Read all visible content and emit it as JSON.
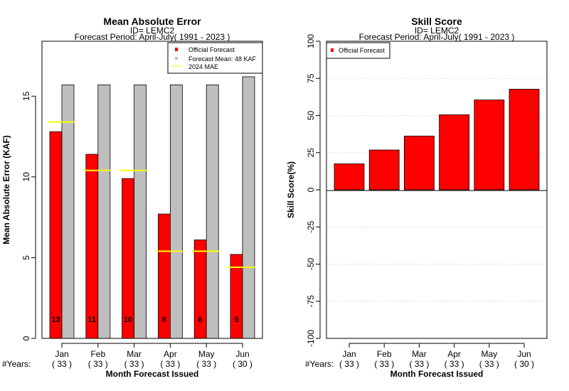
{
  "chart_data": [
    {
      "type": "bar",
      "title": "Mean Absolute Error",
      "subtitle_id": "ID= LEMC2",
      "subtitle_period": "Forecast Period: April-July( 1991 - 2023 )",
      "ylabel": "Mean Absolute Error (KAF)",
      "xlabel": "Month Forecast Issued",
      "ylim": [
        0,
        18.4
      ],
      "yticks": [
        "0",
        "5",
        "10",
        "15"
      ],
      "ytick_values": [
        0,
        5,
        10,
        15
      ],
      "categories": [
        "Jan",
        "Feb",
        "Mar",
        "Apr",
        "May",
        "Jun"
      ],
      "years_label": "#Years:",
      "years": [
        "( 33 )",
        "( 33 )",
        "( 33 )",
        "( 33 )",
        "( 33 )",
        "( 30 )"
      ],
      "series": [
        {
          "name": "Official Forecast",
          "color": "#ff0000",
          "values": [
            12.8,
            11.4,
            9.9,
            7.7,
            6.1,
            5.2
          ],
          "labels": [
            "13",
            "11",
            "10",
            "8",
            "6",
            "5"
          ]
        },
        {
          "name": "Forecast Mean: 48 KAF",
          "color": "#bebebe",
          "values": [
            15.7,
            15.7,
            15.7,
            15.7,
            15.7,
            16.2
          ]
        },
        {
          "name": " 2024  MAE",
          "color": "#ffff00",
          "values": [
            13.4,
            10.4,
            10.4,
            5.4,
            5.4,
            4.4
          ]
        }
      ],
      "legend_position": "top-right",
      "grid": false
    },
    {
      "type": "bar",
      "title": "Skill Score",
      "subtitle_id": "ID= LEMC2",
      "subtitle_period": "Forecast Period: April-July( 1991 - 2023 )",
      "ylabel": "Skill Score(%)",
      "xlabel": "Month Forecast Issued",
      "ylim": [
        -100,
        100
      ],
      "yticks": [
        "-100",
        "-75",
        "-50",
        "-25",
        "0",
        "25",
        "50",
        "75",
        "100"
      ],
      "ytick_values": [
        -100,
        -75,
        -50,
        -25,
        0,
        25,
        50,
        75,
        100
      ],
      "categories": [
        "Jan",
        "Feb",
        "Mar",
        "Apr",
        "May",
        "Jun"
      ],
      "years_label": "#Years:",
      "years": [
        "( 33 )",
        "( 33 )",
        "( 33 )",
        "( 33 )",
        "( 33 )",
        "( 30 )"
      ],
      "series": [
        {
          "name": "Official Forecast",
          "color": "#ff0000",
          "values": [
            17.5,
            26.8,
            36.2,
            50.5,
            60.5,
            67.7
          ]
        }
      ],
      "legend_position": "top-left",
      "grid": true
    }
  ]
}
